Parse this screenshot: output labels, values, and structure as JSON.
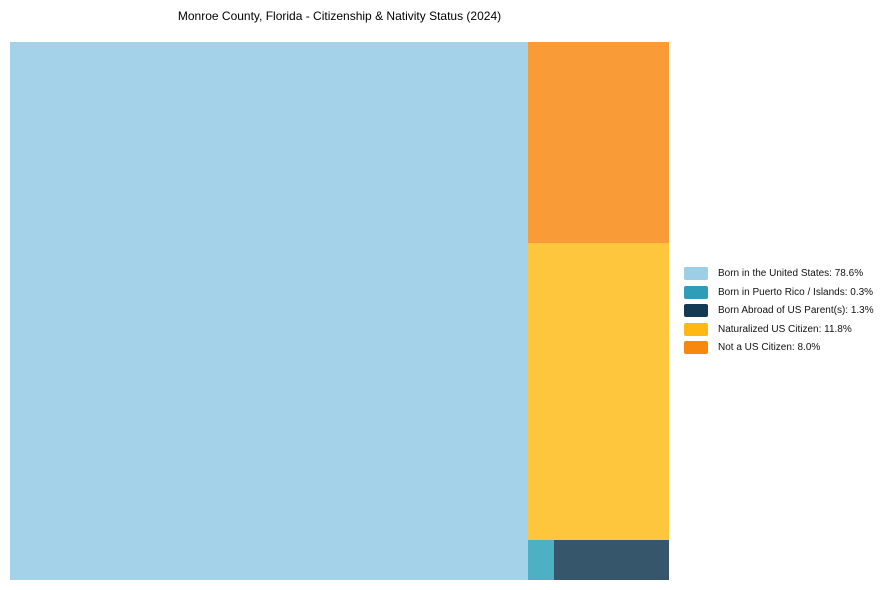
{
  "chart_data": {
    "type": "treemap",
    "title": "Monroe County, Florida - Citizenship & Nativity Status (2024)",
    "unit": "%",
    "legend_position": "right",
    "layout_hint": "single large left block; right column stacked top-to-bottom with a split bottom row",
    "segments": [
      {
        "name": "Born in the United States",
        "value_pct": 78.6,
        "label": "Born in the United States: 78.6%",
        "block_color": "#a4d2e8",
        "legend_color": "#9ccee5"
      },
      {
        "name": "Born in Puerto Rico / Islands",
        "value_pct": 0.3,
        "label": "Born in Puerto Rico / Islands: 0.3%",
        "block_color": "#4db0c3",
        "legend_color": "#2f9cb8"
      },
      {
        "name": "Born Abroad of US Parent(s)",
        "value_pct": 1.3,
        "label": "Born Abroad of US Parent(s): 1.3%",
        "block_color": "#35566b",
        "legend_color": "#133a52"
      },
      {
        "name": "Naturalized US Citizen",
        "value_pct": 11.8,
        "label": "Naturalized US Citizen: 11.8%",
        "block_color": "#fec63c",
        "legend_color": "#fdb813"
      },
      {
        "name": "Not a US Citizen",
        "value_pct": 8.0,
        "label": "Not a US Citizen: 8.0%",
        "block_color": "#f99c37",
        "legend_color": "#f8870e"
      }
    ]
  }
}
